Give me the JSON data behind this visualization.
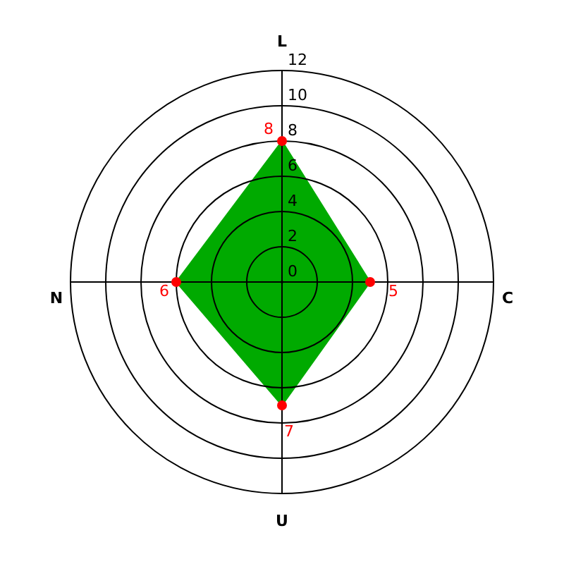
{
  "chart_data": {
    "type": "radar",
    "categories": [
      "L",
      "C",
      "U",
      "N"
    ],
    "series": [
      {
        "color": "#00aa00",
        "values": [
          8,
          5,
          7,
          6
        ]
      }
    ],
    "ylim": [
      0,
      12
    ],
    "yticks": [
      0,
      2,
      4,
      6,
      8,
      10,
      12
    ],
    "grid": true,
    "data_labels": true,
    "marker": "circle"
  }
}
